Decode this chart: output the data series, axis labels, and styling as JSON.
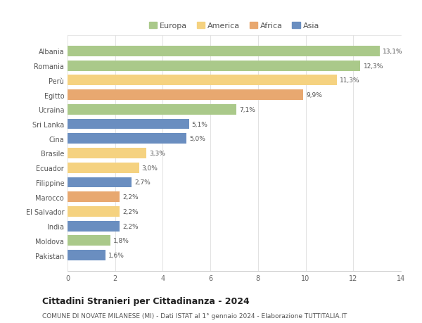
{
  "categories": [
    "Albania",
    "Romania",
    "Perù",
    "Egitto",
    "Ucraina",
    "Sri Lanka",
    "Cina",
    "Brasile",
    "Ecuador",
    "Filippine",
    "Marocco",
    "El Salvador",
    "India",
    "Moldova",
    "Pakistan"
  ],
  "values": [
    13.1,
    12.3,
    11.3,
    9.9,
    7.1,
    5.1,
    5.0,
    3.3,
    3.0,
    2.7,
    2.2,
    2.2,
    2.2,
    1.8,
    1.6
  ],
  "labels": [
    "13,1%",
    "12,3%",
    "11,3%",
    "9,9%",
    "7,1%",
    "5,1%",
    "5,0%",
    "3,3%",
    "3,0%",
    "2,7%",
    "2,2%",
    "2,2%",
    "2,2%",
    "1,8%",
    "1,6%"
  ],
  "continents": [
    "Europa",
    "Europa",
    "America",
    "Africa",
    "Europa",
    "Asia",
    "Asia",
    "America",
    "America",
    "Asia",
    "Africa",
    "America",
    "Asia",
    "Europa",
    "Asia"
  ],
  "continent_colors": {
    "Europa": "#aac98a",
    "America": "#f5d280",
    "Africa": "#e8a870",
    "Asia": "#6a8ec0"
  },
  "legend_entries": [
    "Europa",
    "America",
    "Africa",
    "Asia"
  ],
  "legend_colors": [
    "#aac98a",
    "#f5d280",
    "#e8a870",
    "#6a8ec0"
  ],
  "xlim": [
    0,
    14
  ],
  "xticks": [
    0,
    2,
    4,
    6,
    8,
    10,
    12,
    14
  ],
  "title": "Cittadini Stranieri per Cittadinanza - 2024",
  "subtitle": "COMUNE DI NOVATE MILANESE (MI) - Dati ISTAT al 1° gennaio 2024 - Elaborazione TUTTITALIA.IT",
  "background_color": "#ffffff",
  "bar_height": 0.72,
  "title_fontsize": 9,
  "subtitle_fontsize": 6.5,
  "label_fontsize": 6.5,
  "tick_fontsize": 7,
  "legend_fontsize": 8
}
